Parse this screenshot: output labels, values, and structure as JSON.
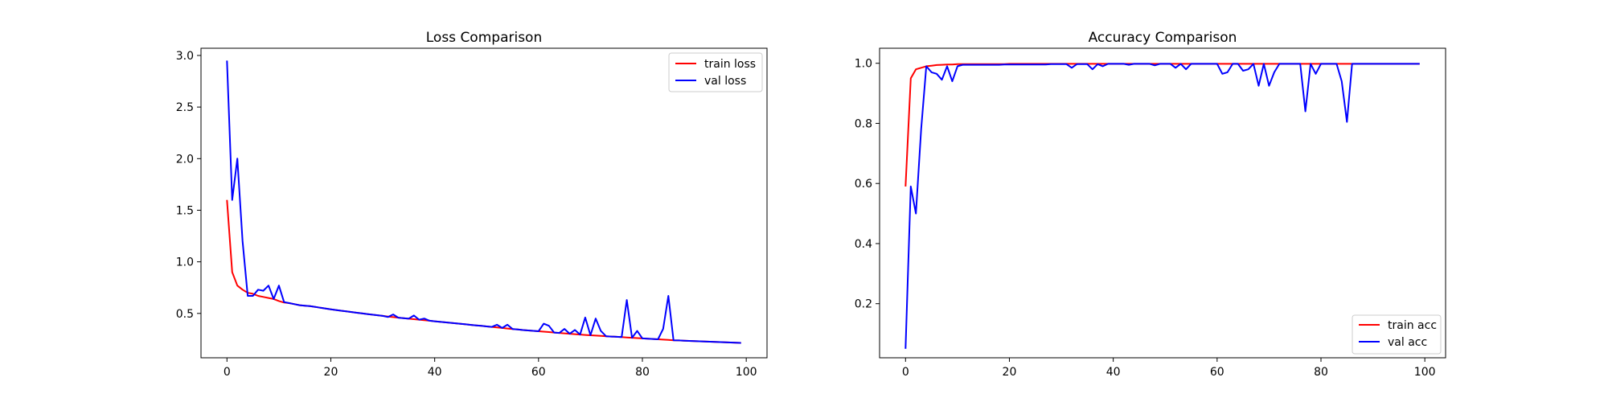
{
  "chart_data": [
    {
      "type": "line",
      "title": "Loss Comparison",
      "xlabel": "",
      "ylabel": "",
      "xlim": [
        -5,
        104
      ],
      "ylim": [
        0.07,
        3.07
      ],
      "xticks": [
        0,
        20,
        40,
        60,
        80,
        100
      ],
      "yticks": [
        0.5,
        1.0,
        1.5,
        2.0,
        2.5,
        3.0
      ],
      "ytick_labels": [
        "0.5",
        "1.0",
        "1.5",
        "2.0",
        "2.5",
        "3.0"
      ],
      "grid": false,
      "legend_position": "top-right",
      "x": [
        0,
        1,
        2,
        3,
        4,
        5,
        6,
        7,
        8,
        9,
        10,
        11,
        12,
        13,
        14,
        15,
        16,
        17,
        18,
        19,
        20,
        21,
        22,
        23,
        24,
        25,
        26,
        27,
        28,
        29,
        30,
        31,
        32,
        33,
        34,
        35,
        36,
        37,
        38,
        39,
        40,
        41,
        42,
        43,
        44,
        45,
        46,
        47,
        48,
        49,
        50,
        51,
        52,
        53,
        54,
        55,
        56,
        57,
        58,
        59,
        60,
        61,
        62,
        63,
        64,
        65,
        66,
        67,
        68,
        69,
        70,
        71,
        72,
        73,
        74,
        75,
        76,
        77,
        78,
        79,
        80,
        81,
        82,
        83,
        84,
        85,
        86,
        87,
        88,
        89,
        90,
        91,
        92,
        93,
        94,
        95,
        96,
        97,
        98,
        99
      ],
      "series": [
        {
          "name": "train loss",
          "color": "#ff0000",
          "values": [
            1.6,
            0.9,
            0.77,
            0.73,
            0.7,
            0.69,
            0.67,
            0.66,
            0.65,
            0.64,
            0.62,
            0.605,
            0.6,
            0.59,
            0.58,
            0.575,
            0.57,
            0.563,
            0.555,
            0.548,
            0.54,
            0.533,
            0.526,
            0.52,
            0.513,
            0.506,
            0.5,
            0.494,
            0.488,
            0.482,
            0.476,
            0.47,
            0.464,
            0.459,
            0.454,
            0.449,
            0.444,
            0.439,
            0.434,
            0.429,
            0.424,
            0.419,
            0.414,
            0.409,
            0.404,
            0.399,
            0.394,
            0.389,
            0.384,
            0.379,
            0.374,
            0.369,
            0.364,
            0.359,
            0.354,
            0.349,
            0.344,
            0.339,
            0.335,
            0.331,
            0.327,
            0.323,
            0.319,
            0.315,
            0.311,
            0.307,
            0.303,
            0.299,
            0.295,
            0.291,
            0.288,
            0.285,
            0.282,
            0.279,
            0.276,
            0.273,
            0.27,
            0.267,
            0.264,
            0.261,
            0.258,
            0.255,
            0.252,
            0.249,
            0.246,
            0.243,
            0.24,
            0.238,
            0.236,
            0.234,
            0.232,
            0.23,
            0.228,
            0.226,
            0.224,
            0.222,
            0.22,
            0.218,
            0.216,
            0.214
          ]
        },
        {
          "name": "val loss",
          "color": "#0000ff",
          "values": [
            2.95,
            1.6,
            2.0,
            1.2,
            0.67,
            0.67,
            0.73,
            0.72,
            0.77,
            0.64,
            0.77,
            0.61,
            0.6,
            0.59,
            0.58,
            0.575,
            0.57,
            0.563,
            0.555,
            0.548,
            0.54,
            0.533,
            0.526,
            0.52,
            0.513,
            0.506,
            0.5,
            0.494,
            0.488,
            0.482,
            0.476,
            0.465,
            0.49,
            0.459,
            0.454,
            0.449,
            0.48,
            0.439,
            0.45,
            0.429,
            0.424,
            0.419,
            0.414,
            0.409,
            0.404,
            0.399,
            0.394,
            0.389,
            0.384,
            0.379,
            0.374,
            0.369,
            0.39,
            0.359,
            0.39,
            0.349,
            0.344,
            0.339,
            0.335,
            0.331,
            0.327,
            0.4,
            0.38,
            0.315,
            0.311,
            0.35,
            0.303,
            0.34,
            0.295,
            0.46,
            0.288,
            0.45,
            0.33,
            0.279,
            0.276,
            0.273,
            0.27,
            0.63,
            0.264,
            0.33,
            0.258,
            0.255,
            0.252,
            0.249,
            0.35,
            0.67,
            0.24,
            0.238,
            0.236,
            0.234,
            0.232,
            0.23,
            0.228,
            0.226,
            0.224,
            0.222,
            0.22,
            0.218,
            0.216,
            0.214
          ]
        }
      ]
    },
    {
      "type": "line",
      "title": "Accuracy Comparison",
      "xlabel": "",
      "ylabel": "",
      "xlim": [
        -5,
        104
      ],
      "ylim": [
        0.02,
        1.05
      ],
      "xticks": [
        0,
        20,
        40,
        60,
        80,
        100
      ],
      "yticks": [
        0.2,
        0.4,
        0.6,
        0.8,
        1.0
      ],
      "ytick_labels": [
        "0.2",
        "0.4",
        "0.6",
        "0.8",
        "1.0"
      ],
      "grid": false,
      "legend_position": "bottom-right",
      "x": [
        0,
        1,
        2,
        3,
        4,
        5,
        6,
        7,
        8,
        9,
        10,
        11,
        12,
        13,
        14,
        15,
        16,
        17,
        18,
        19,
        20,
        21,
        22,
        23,
        24,
        25,
        26,
        27,
        28,
        29,
        30,
        31,
        32,
        33,
        34,
        35,
        36,
        37,
        38,
        39,
        40,
        41,
        42,
        43,
        44,
        45,
        46,
        47,
        48,
        49,
        50,
        51,
        52,
        53,
        54,
        55,
        56,
        57,
        58,
        59,
        60,
        61,
        62,
        63,
        64,
        65,
        66,
        67,
        68,
        69,
        70,
        71,
        72,
        73,
        74,
        75,
        76,
        77,
        78,
        79,
        80,
        81,
        82,
        83,
        84,
        85,
        86,
        87,
        88,
        89,
        90,
        91,
        92,
        93,
        94,
        95,
        96,
        97,
        98,
        99
      ],
      "series": [
        {
          "name": "train acc",
          "color": "#ff0000",
          "values": [
            0.59,
            0.95,
            0.98,
            0.985,
            0.99,
            0.992,
            0.994,
            0.995,
            0.996,
            0.996,
            0.997,
            0.997,
            0.997,
            0.997,
            0.997,
            0.997,
            0.997,
            0.997,
            0.997,
            0.997,
            0.998,
            0.998,
            0.998,
            0.998,
            0.998,
            0.998,
            0.998,
            0.998,
            0.998,
            0.998,
            0.998,
            0.998,
            0.998,
            0.998,
            0.998,
            0.998,
            0.998,
            0.998,
            0.998,
            0.998,
            0.998,
            0.998,
            0.998,
            0.998,
            0.998,
            0.998,
            0.998,
            0.998,
            0.998,
            0.998,
            0.998,
            0.998,
            0.998,
            0.998,
            0.998,
            0.998,
            0.998,
            0.998,
            0.998,
            0.998,
            0.998,
            0.998,
            0.998,
            0.998,
            0.998,
            0.998,
            0.998,
            0.998,
            0.998,
            0.998,
            0.998,
            0.998,
            0.998,
            0.998,
            0.998,
            0.998,
            0.998,
            0.998,
            0.998,
            0.998,
            0.998,
            0.998,
            0.998,
            0.998,
            0.998,
            0.998,
            0.998,
            0.998,
            0.998,
            0.998,
            0.998,
            0.998,
            0.998,
            0.998,
            0.998,
            0.998,
            0.998,
            0.998,
            0.998,
            0.998
          ]
        },
        {
          "name": "val acc",
          "color": "#0000ff",
          "values": [
            0.05,
            0.59,
            0.5,
            0.78,
            0.99,
            0.97,
            0.965,
            0.945,
            0.99,
            0.94,
            0.99,
            0.995,
            0.995,
            0.995,
            0.995,
            0.995,
            0.995,
            0.995,
            0.995,
            0.996,
            0.996,
            0.996,
            0.996,
            0.996,
            0.996,
            0.996,
            0.996,
            0.996,
            0.997,
            0.997,
            0.997,
            0.997,
            0.985,
            0.997,
            0.997,
            0.997,
            0.98,
            0.997,
            0.99,
            0.998,
            0.998,
            0.998,
            0.998,
            0.995,
            0.998,
            0.998,
            0.998,
            0.998,
            0.993,
            0.998,
            0.998,
            0.998,
            0.985,
            0.998,
            0.98,
            0.998,
            0.998,
            0.998,
            0.998,
            0.998,
            0.998,
            0.965,
            0.97,
            0.998,
            0.998,
            0.975,
            0.98,
            0.998,
            0.925,
            0.998,
            0.925,
            0.97,
            0.998,
            0.998,
            0.998,
            0.998,
            0.998,
            0.84,
            0.998,
            0.965,
            0.998,
            0.998,
            0.998,
            0.998,
            0.94,
            0.805,
            0.998,
            0.998,
            0.998,
            0.998,
            0.998,
            0.998,
            0.998,
            0.998,
            0.998,
            0.998,
            0.998,
            0.998,
            0.998,
            0.998
          ]
        }
      ]
    }
  ]
}
